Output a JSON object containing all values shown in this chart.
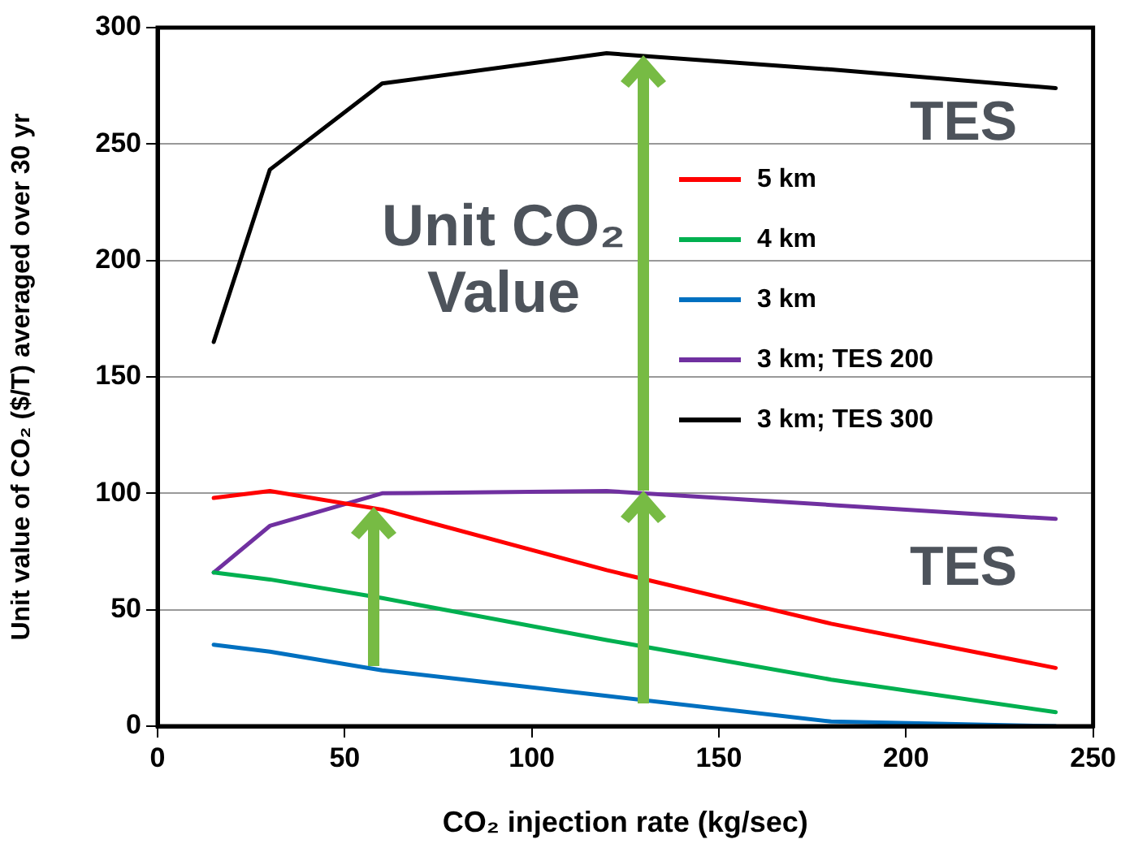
{
  "chart_data": {
    "type": "line",
    "xlabel": "CO₂ injection rate (kg/sec)",
    "ylabel": "Unit value of CO₂ ($/T) averaged over 30 yr",
    "x": [
      15,
      30,
      60,
      120,
      180,
      240
    ],
    "series": [
      {
        "name": "5 km",
        "color": "#ff0000",
        "values": [
          98,
          101,
          93,
          67,
          44,
          25
        ]
      },
      {
        "name": "4 km",
        "color": "#00b050",
        "values": [
          66,
          63,
          55,
          37,
          20,
          6
        ]
      },
      {
        "name": "3 km",
        "color": "#0070c0",
        "values": [
          35,
          32,
          24,
          13,
          2,
          0
        ]
      },
      {
        "name": "3 km; TES 200",
        "color": "#7030a0",
        "values": [
          66,
          86,
          100,
          101,
          95,
          89
        ]
      },
      {
        "name": "3 km; TES 300",
        "color": "#000000",
        "values": [
          165,
          239,
          276,
          289,
          282,
          274
        ]
      }
    ],
    "xlim": [
      0,
      250
    ],
    "xticks": [
      0,
      50,
      100,
      150,
      200,
      250
    ],
    "ylim": [
      0,
      300
    ],
    "yticks": [
      0,
      50,
      100,
      150,
      200,
      250,
      300
    ],
    "grid": "y",
    "legend": "right",
    "marker": "none",
    "line_style": "solid",
    "annotations": [
      "Unit CO₂ Value",
      "TES",
      "TES"
    ]
  }
}
